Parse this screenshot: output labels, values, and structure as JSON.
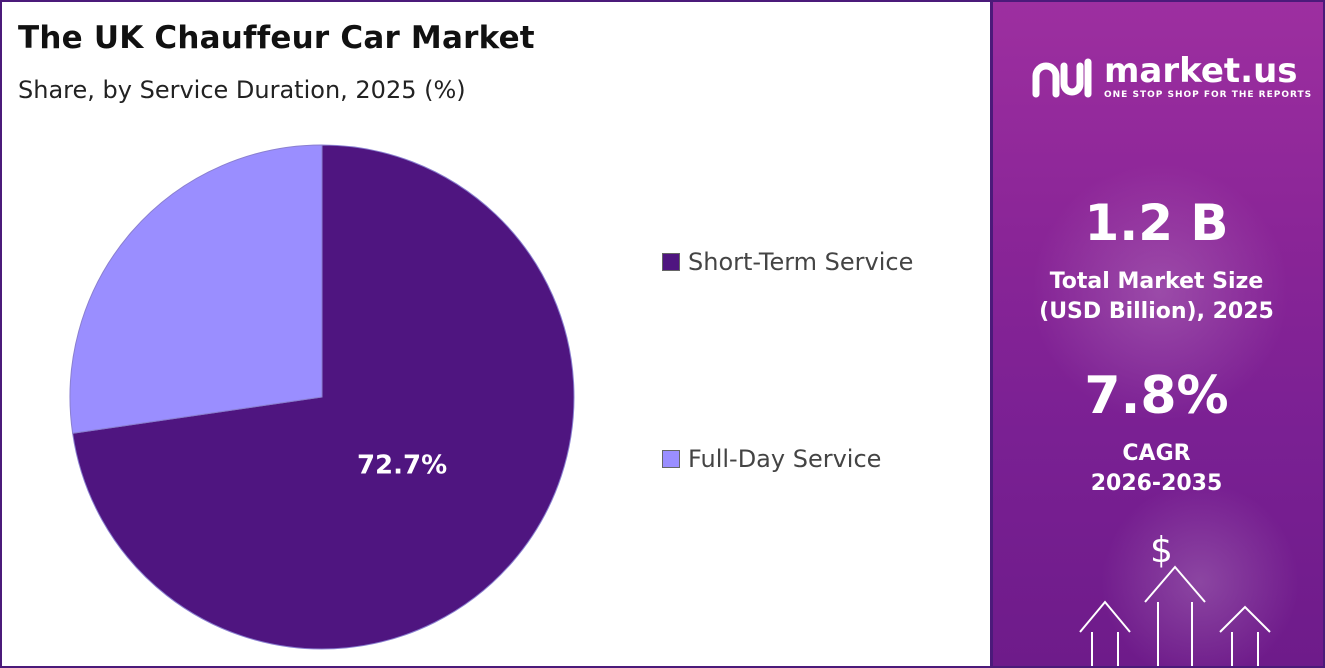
{
  "header": {
    "title": "The UK Chauffeur Car Market",
    "subtitle": "Share, by Service Duration, 2025 (%)"
  },
  "chart_data": {
    "type": "pie",
    "title": "The UK Chauffeur Car Market",
    "subtitle": "Share, by Service Duration, 2025 (%)",
    "categories": [
      "Short-Term Service",
      "Full-Day Service"
    ],
    "values": [
      72.7,
      27.3
    ],
    "data_labels": [
      "72.7%",
      ""
    ],
    "colors": [
      "#4f1580",
      "#9a8eff"
    ],
    "legend_position": "right"
  },
  "legend": {
    "items": [
      {
        "label": "Short-Term Service",
        "color": "#4f1580"
      },
      {
        "label": "Full-Day Service",
        "color": "#9a8eff"
      }
    ]
  },
  "panel": {
    "brand": "market.us",
    "tagline": "ONE STOP SHOP FOR THE REPORTS",
    "market_size_value": "1.2 B",
    "market_size_label_line1": "Total Market Size",
    "market_size_label_line2": "(USD Billion), 2025",
    "cagr_value": "7.8%",
    "cagr_label_line1": "CAGR",
    "cagr_label_line2": "2026-2035",
    "dollar_symbol": "$",
    "icons": [
      "market-us-logo-icon",
      "dollar-icon",
      "up-arrow-icon"
    ]
  }
}
